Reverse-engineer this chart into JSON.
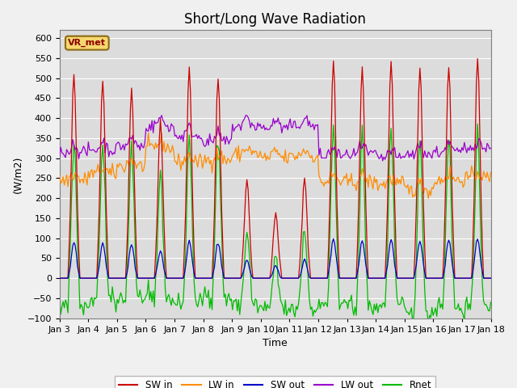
{
  "title": "Short/Long Wave Radiation",
  "ylabel": "(W/m2)",
  "xlabel": "Time",
  "ylim": [
    -100,
    620
  ],
  "yticks": [
    -100,
    -50,
    0,
    50,
    100,
    150,
    200,
    250,
    300,
    350,
    400,
    450,
    500,
    550,
    600
  ],
  "colors": {
    "sw_in": "#cc0000",
    "lw_in": "#ff8c00",
    "sw_out": "#0000cc",
    "lw_out": "#9900cc",
    "rnet": "#00bb00"
  },
  "legend_labels": [
    "SW in",
    "LW in",
    "SW out",
    "LW out",
    "Rnet"
  ],
  "station_label": "VR_met",
  "fig_bg_color": "#f0f0f0",
  "plot_bg_color": "#dcdcdc",
  "n_days": 15,
  "xtick_labels": [
    "Jan 3",
    "Jan 4",
    "Jan 5",
    "Jan 6",
    "Jan 7",
    "Jan 8",
    "Jan 9",
    "Jan 10",
    "Jan 11",
    "Jan 12",
    "Jan 13",
    "Jan 14",
    "Jan 15",
    "Jan 16",
    "Jan 17",
    "Jan 18"
  ],
  "title_fontsize": 12,
  "label_fontsize": 9,
  "tick_fontsize": 8,
  "sw_in_peaks": [
    510,
    500,
    475,
    390,
    525,
    505,
    245,
    160,
    250,
    545,
    530,
    545,
    525,
    530,
    555
  ],
  "lw_in_base": [
    245,
    260,
    280,
    325,
    290,
    295,
    310,
    300,
    305,
    240,
    240,
    235,
    220,
    245,
    250
  ],
  "lw_out_base": [
    315,
    320,
    330,
    380,
    355,
    340,
    380,
    375,
    380,
    305,
    310,
    300,
    310,
    315,
    325
  ],
  "sw_out_ratio": 0.18,
  "rnet_night_base": -70
}
